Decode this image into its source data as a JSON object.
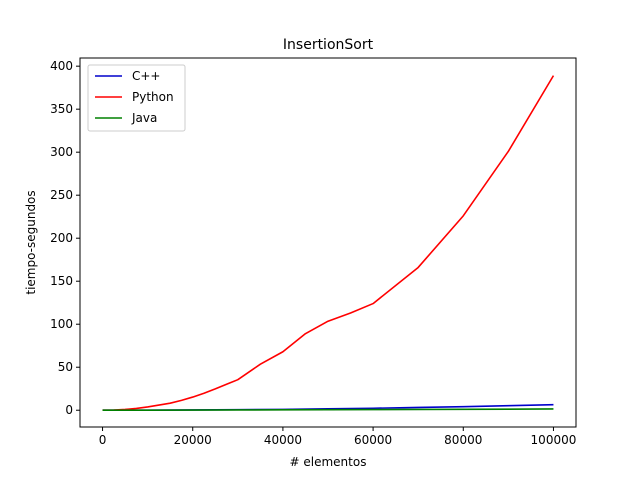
{
  "chart_data": {
    "type": "line",
    "title": "InsertionSort",
    "xlabel": "# elementos",
    "ylabel": "tiempo-segundos",
    "xlim": [
      -5000,
      105000
    ],
    "ylim": [
      -19.5,
      409.5
    ],
    "xticks": [
      0,
      20000,
      40000,
      60000,
      80000,
      100000
    ],
    "yticks": [
      0,
      50,
      100,
      150,
      200,
      250,
      300,
      350,
      400
    ],
    "grid": false,
    "legend": "top-left",
    "series": [
      {
        "name": "C++",
        "color": "#0000cc",
        "x": [
          0,
          10000,
          20000,
          30000,
          40000,
          50000,
          60000,
          70000,
          80000,
          90000,
          100000
        ],
        "y": [
          0,
          0.1,
          0.3,
          0.6,
          1.0,
          1.6,
          2.3,
          3.2,
          4.1,
          5.3,
          6.5
        ]
      },
      {
        "name": "Python",
        "color": "#ff0000",
        "x": [
          0,
          2500,
          5000,
          7500,
          10000,
          15000,
          17500,
          20000,
          22500,
          25000,
          27500,
          30000,
          35000,
          40000,
          45000,
          50000,
          55000,
          60000,
          70000,
          80000,
          90000,
          100000
        ],
        "y": [
          0,
          0.2,
          0.9,
          2.1,
          3.8,
          8.2,
          11.5,
          15.3,
          19.8,
          24.8,
          30.2,
          35.5,
          53.5,
          68.0,
          89.0,
          103.5,
          113.0,
          124.0,
          166.0,
          226.0,
          301.0,
          389.0
        ]
      },
      {
        "name": "Java",
        "color": "#008000",
        "x": [
          0,
          10000,
          20000,
          30000,
          40000,
          50000,
          60000,
          70000,
          80000,
          90000,
          100000
        ],
        "y": [
          0,
          0.05,
          0.15,
          0.3,
          0.45,
          0.6,
          0.75,
          0.9,
          1.05,
          1.25,
          1.5
        ]
      }
    ]
  }
}
